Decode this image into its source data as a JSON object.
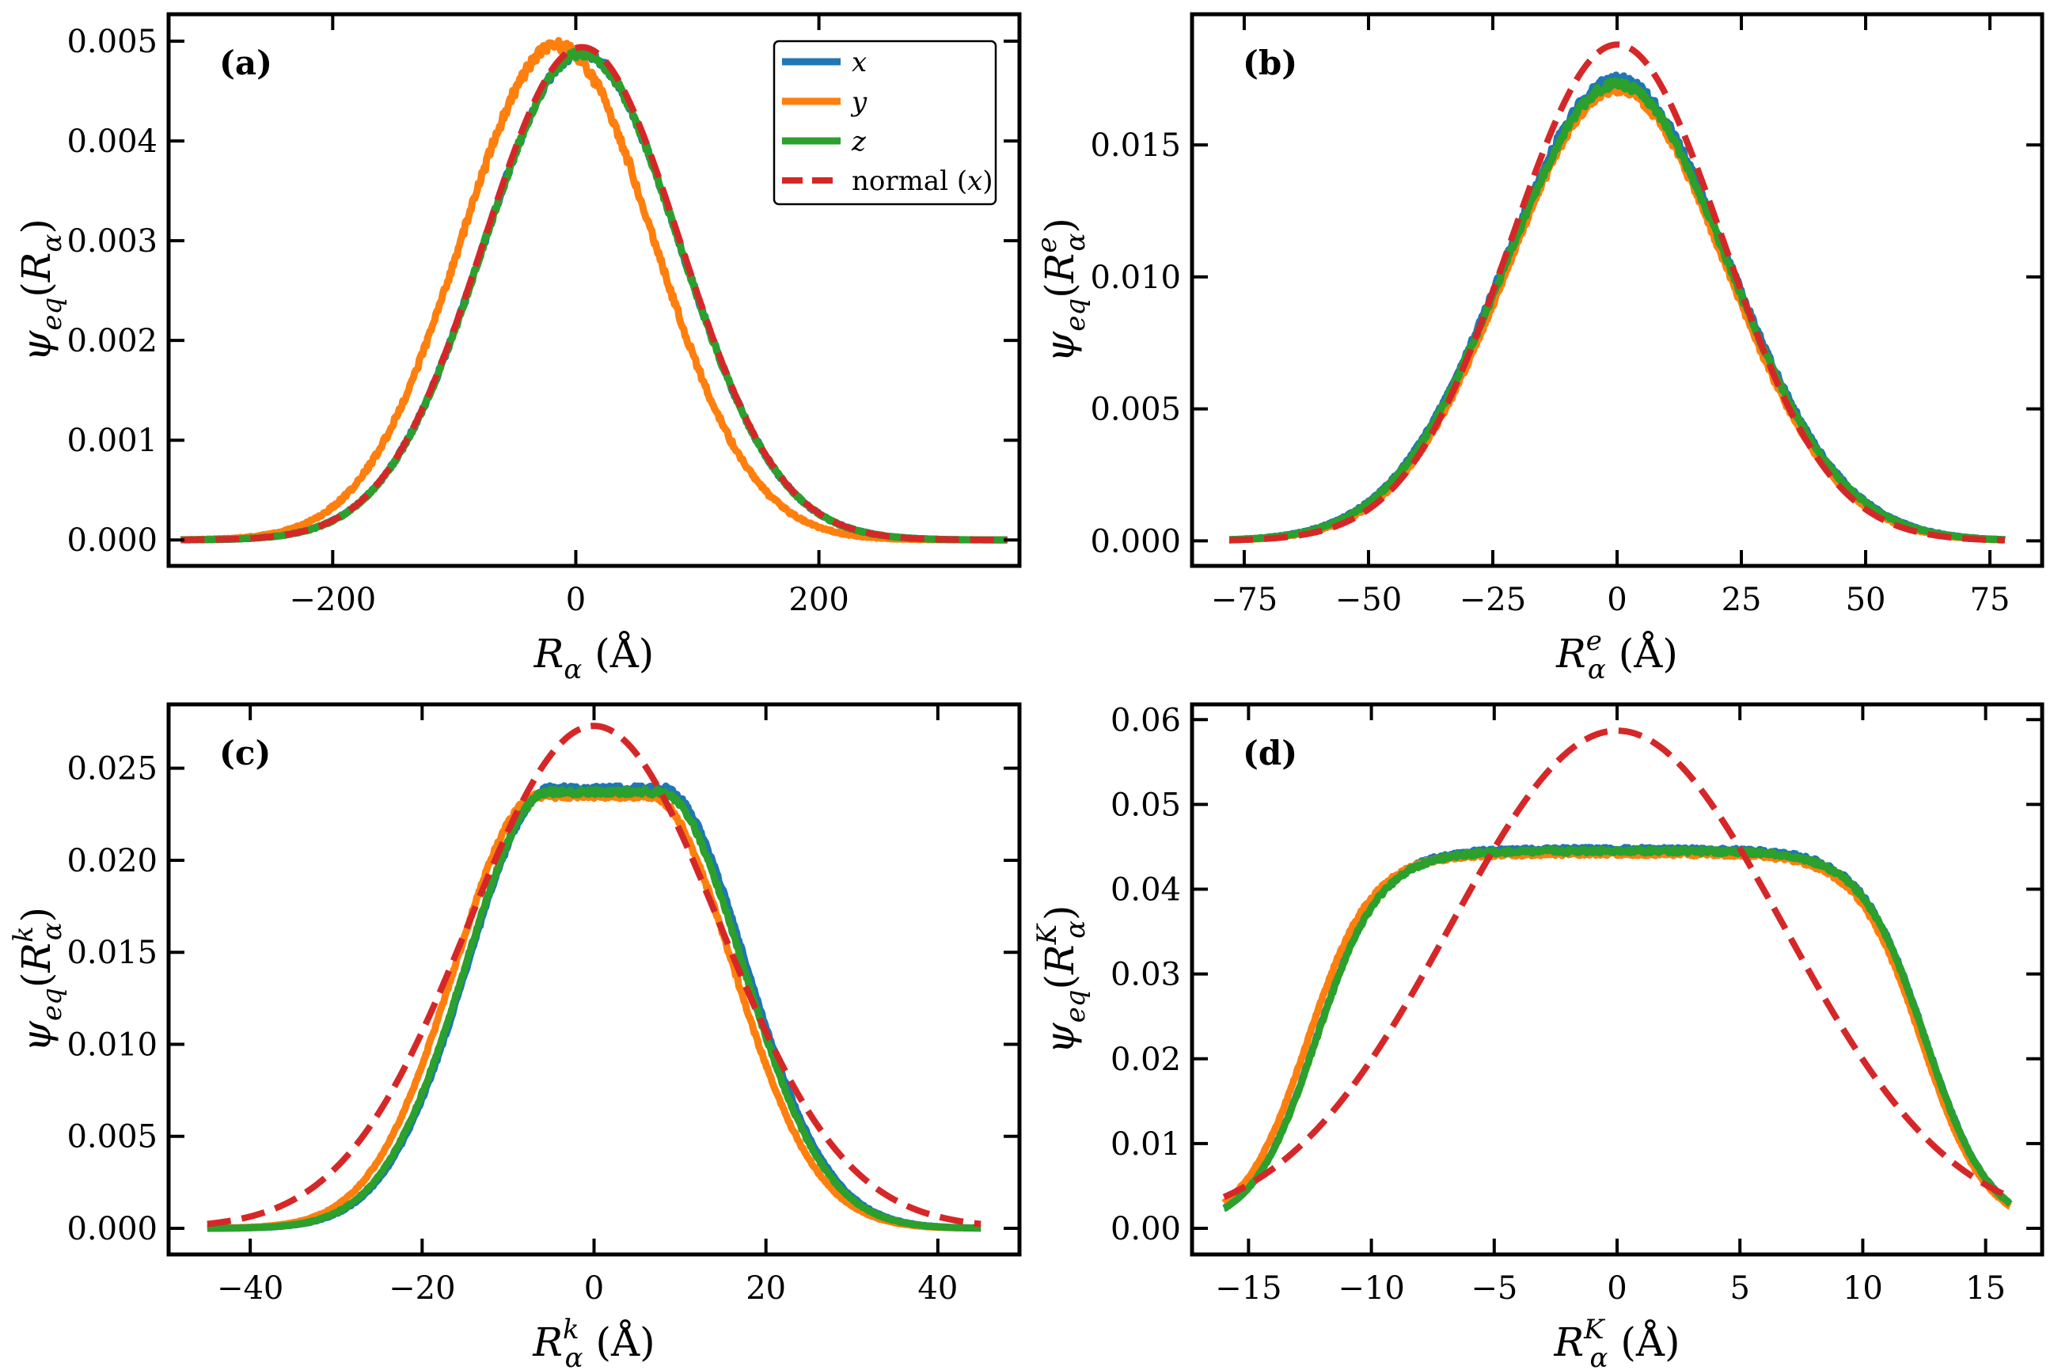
{
  "colors": {
    "x": "#1f77b4",
    "y": "#ff7f0e",
    "z": "#2ca02c",
    "normal": "#d62728"
  },
  "chart_data": [
    {
      "type": "line",
      "panel_label": "(a)",
      "xlabel": {
        "base": "R",
        "sub": "α",
        "sup": "",
        "unit": "(Å)"
      },
      "ylabel": {
        "psi": "ψ",
        "sub": "eq",
        "arg_base": "R",
        "arg_sub": "α",
        "arg_sup": ""
      },
      "xlim": [
        -335,
        365
      ],
      "ylim": [
        -0.00026,
        0.00527
      ],
      "xticks": [
        -200,
        0,
        200
      ],
      "xtick_labels": [
        "−200",
        "0",
        "200"
      ],
      "yticks": [
        0.0,
        0.001,
        0.002,
        0.003,
        0.004,
        0.005
      ],
      "ytick_labels": [
        "0.000",
        "0.001",
        "0.002",
        "0.003",
        "0.004",
        "0.005"
      ],
      "legend": {
        "placement": "top-right",
        "entries": [
          {
            "key": "x",
            "text": "x",
            "italic": true
          },
          {
            "key": "y",
            "text": "y",
            "italic": true
          },
          {
            "key": "z",
            "text": "z",
            "italic": true
          },
          {
            "key": "normal",
            "text_pre": "normal (",
            "text_it": "x",
            "text_post": ")",
            "dashed": true
          }
        ]
      },
      "series": [
        {
          "name": "x",
          "key": "x",
          "shape": "gauss",
          "domain": [
            -325,
            355
          ],
          "center": 5,
          "sigma": 80.7,
          "peak": 0.00488,
          "noise": 4e-05
        },
        {
          "name": "y",
          "key": "y",
          "shape": "gauss",
          "domain": [
            -325,
            355
          ],
          "center": -15,
          "sigma": 79.5,
          "peak": 0.00496,
          "noise": 6e-05
        },
        {
          "name": "z",
          "key": "z",
          "shape": "gauss",
          "domain": [
            -325,
            355
          ],
          "center": 5,
          "sigma": 80.7,
          "peak": 0.00488,
          "noise": 4e-05
        },
        {
          "name": "normal (x)",
          "key": "normal",
          "shape": "gauss",
          "domain": [
            -325,
            355
          ],
          "center": 5,
          "sigma": 80.7,
          "peak": 0.00494,
          "dashed": true
        }
      ]
    },
    {
      "type": "line",
      "panel_label": "(b)",
      "xlabel": {
        "base": "R",
        "sub": "α",
        "sup": "e",
        "unit": "(Å)"
      },
      "ylabel": {
        "psi": "ψ",
        "sub": "eq",
        "arg_base": "R",
        "arg_sub": "α",
        "arg_sup": "e"
      },
      "xlim": [
        -85.5,
        85.5
      ],
      "ylim": [
        -0.00095,
        0.01995
      ],
      "xticks": [
        -75,
        -50,
        -25,
        0,
        25,
        50,
        75
      ],
      "xtick_labels": [
        "−75",
        "−50",
        "−25",
        "0",
        "25",
        "50",
        "75"
      ],
      "yticks": [
        0.0,
        0.005,
        0.01,
        0.015
      ],
      "ytick_labels": [
        "0.000",
        "0.005",
        "0.010",
        "0.015"
      ],
      "series": [
        {
          "name": "x",
          "key": "x",
          "shape": "gauss4",
          "domain": [
            -78,
            78
          ],
          "center": 0,
          "sigma": 22.5,
          "peak": 0.0175,
          "noise": 0.00015
        },
        {
          "name": "y",
          "key": "y",
          "shape": "gauss4",
          "domain": [
            -78,
            78
          ],
          "center": 0,
          "sigma": 22.0,
          "peak": 0.0171,
          "noise": 0.00015
        },
        {
          "name": "z",
          "key": "z",
          "shape": "gauss4",
          "domain": [
            -78,
            78
          ],
          "center": 0,
          "sigma": 22.4,
          "peak": 0.0173,
          "noise": 0.00015
        },
        {
          "name": "normal (x)",
          "key": "normal",
          "shape": "gauss",
          "domain": [
            -78,
            78
          ],
          "center": 0,
          "sigma": 21.3,
          "peak": 0.0188,
          "dashed": true
        }
      ]
    },
    {
      "type": "line",
      "panel_label": "(c)",
      "xlabel": {
        "base": "R",
        "sub": "α",
        "sup": "k",
        "unit": "(Å)"
      },
      "ylabel": {
        "psi": "ψ",
        "sub": "eq",
        "arg_base": "R",
        "arg_sub": "α",
        "arg_sup": "k"
      },
      "xlim": [
        -49.5,
        49.5
      ],
      "ylim": [
        -0.00142,
        0.02847
      ],
      "xticks": [
        -40,
        -20,
        0,
        20,
        40
      ],
      "xtick_labels": [
        "−40",
        "−20",
        "0",
        "20",
        "40"
      ],
      "yticks": [
        0.0,
        0.005,
        0.01,
        0.015,
        0.02,
        0.025
      ],
      "ytick_labels": [
        "0.000",
        "0.005",
        "0.010",
        "0.015",
        "0.020",
        "0.025"
      ],
      "series": [
        {
          "name": "x",
          "key": "x",
          "shape": "plateau",
          "domain": [
            -45,
            45
          ],
          "center": 1.5,
          "a": 6.5,
          "b": 30.0,
          "s": 0.9,
          "peak": 0.0239,
          "noise": 0.00015
        },
        {
          "name": "y",
          "key": "y",
          "shape": "plateau",
          "domain": [
            -45,
            45
          ],
          "center": 0,
          "a": 6.5,
          "b": 30.2,
          "s": 0.9,
          "peak": 0.0235,
          "noise": 0.00015
        },
        {
          "name": "z",
          "key": "z",
          "shape": "plateau",
          "domain": [
            -45,
            45
          ],
          "center": 1.2,
          "a": 6.5,
          "b": 30.0,
          "s": 0.9,
          "peak": 0.0237,
          "noise": 0.00015
        },
        {
          "name": "normal (x)",
          "key": "normal",
          "shape": "gauss",
          "domain": [
            -45,
            45
          ],
          "center": 0,
          "sigma": 14.6,
          "peak": 0.0273,
          "dashed": true
        }
      ]
    },
    {
      "type": "line",
      "panel_label": "(d)",
      "xlabel": {
        "base": "R",
        "sub": "α",
        "sup": "K",
        "unit": "(Å)"
      },
      "ylabel": {
        "psi": "ψ",
        "sub": "eq",
        "arg_base": "R",
        "arg_sub": "α",
        "arg_sup": "K"
      },
      "xlim": [
        -17.3,
        17.3
      ],
      "ylim": [
        -0.00308,
        0.0618
      ],
      "xticks": [
        -15,
        -10,
        -5,
        0,
        5,
        10,
        15
      ],
      "xtick_labels": [
        "−15",
        "−10",
        "−5",
        "0",
        "5",
        "10",
        "15"
      ],
      "yticks": [
        0.0,
        0.01,
        0.02,
        0.03,
        0.04,
        0.05,
        0.06
      ],
      "ytick_labels": [
        "0.00",
        "0.01",
        "0.02",
        "0.03",
        "0.04",
        "0.05",
        "0.06"
      ],
      "series": [
        {
          "name": "x",
          "key": "x",
          "shape": "flattop",
          "domain": [
            -16,
            16
          ],
          "center": 0.15,
          "edge": 12.4,
          "w": 1.3,
          "peak": 0.0447,
          "noise": 0.00025
        },
        {
          "name": "y",
          "key": "y",
          "shape": "flattop",
          "domain": [
            -16,
            16
          ],
          "center": -0.1,
          "edge": 12.5,
          "w": 1.3,
          "peak": 0.0442,
          "noise": 0.00025
        },
        {
          "name": "z",
          "key": "z",
          "shape": "flattop",
          "domain": [
            -16,
            16
          ],
          "center": 0.15,
          "edge": 12.4,
          "w": 1.3,
          "peak": 0.0445,
          "noise": 0.00025
        },
        {
          "name": "normal (x)",
          "key": "normal",
          "shape": "gauss",
          "domain": [
            -16,
            16
          ],
          "center": 0,
          "sigma": 6.8,
          "peak": 0.0587,
          "dashed": true
        }
      ]
    }
  ]
}
